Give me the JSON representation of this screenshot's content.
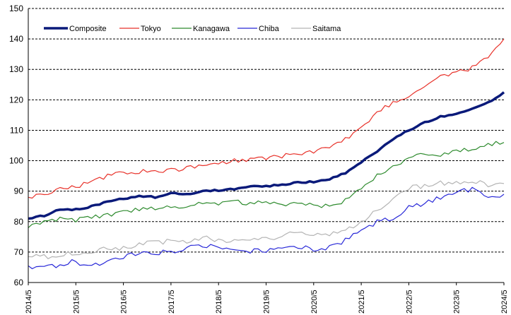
{
  "chart_data": {
    "type": "line",
    "title": "",
    "xlabel": "",
    "ylabel": "",
    "ylim": [
      60,
      150
    ],
    "yticks": [
      60,
      70,
      80,
      90,
      100,
      110,
      120,
      130,
      140,
      150
    ],
    "x_start": "2014/5",
    "x_end": "2024/5",
    "x_ticks": [
      "2014/5",
      "2015/5",
      "2016/5",
      "2017/5",
      "2018/5",
      "2019/5",
      "2020/5",
      "2021/5",
      "2022/5",
      "2023/5",
      "2024/5"
    ],
    "grid": "horizontal dashed",
    "legend_position": "top-left",
    "series": [
      {
        "name": "Composite",
        "color": "#0a1a7a",
        "keypoints": [
          [
            "2014/5",
            81
          ],
          [
            "2014/9",
            82
          ],
          [
            "2015/1",
            84
          ],
          [
            "2015/5",
            84
          ],
          [
            "2015/9",
            85
          ],
          [
            "2016/1",
            86.5
          ],
          [
            "2016/5",
            87.5
          ],
          [
            "2016/9",
            88.5
          ],
          [
            "2017/1",
            88
          ],
          [
            "2017/5",
            89.5
          ],
          [
            "2017/9",
            89
          ],
          [
            "2018/1",
            90
          ],
          [
            "2018/5",
            90.3
          ],
          [
            "2018/9",
            90.8
          ],
          [
            "2019/1",
            91.5
          ],
          [
            "2019/5",
            91.7
          ],
          [
            "2019/9",
            92
          ],
          [
            "2020/1",
            93
          ],
          [
            "2020/5",
            93
          ],
          [
            "2020/9",
            94
          ],
          [
            "2021/1",
            96
          ],
          [
            "2021/5",
            99.5
          ],
          [
            "2021/9",
            103
          ],
          [
            "2022/1",
            107
          ],
          [
            "2022/5",
            110
          ],
          [
            "2022/9",
            112.5
          ],
          [
            "2023/1",
            114.5
          ],
          [
            "2023/5",
            115.5
          ],
          [
            "2023/9",
            117
          ],
          [
            "2024/1",
            119
          ],
          [
            "2024/5",
            122.5
          ]
        ]
      },
      {
        "name": "Tokyo",
        "color": "#e8322a",
        "keypoints": [
          [
            "2014/5",
            88
          ],
          [
            "2014/9",
            89
          ],
          [
            "2015/1",
            91
          ],
          [
            "2015/5",
            91.5
          ],
          [
            "2015/9",
            93
          ],
          [
            "2016/1",
            95
          ],
          [
            "2016/5",
            96
          ],
          [
            "2016/9",
            96.5
          ],
          [
            "2017/1",
            96.5
          ],
          [
            "2017/5",
            97
          ],
          [
            "2017/9",
            97.5
          ],
          [
            "2018/1",
            98.5
          ],
          [
            "2018/5",
            99
          ],
          [
            "2018/9",
            100
          ],
          [
            "2019/1",
            100.5
          ],
          [
            "2019/5",
            101
          ],
          [
            "2019/9",
            101.5
          ],
          [
            "2020/1",
            102.5
          ],
          [
            "2020/5",
            103
          ],
          [
            "2020/9",
            104.5
          ],
          [
            "2021/1",
            107
          ],
          [
            "2021/5",
            111
          ],
          [
            "2021/9",
            116
          ],
          [
            "2022/1",
            119
          ],
          [
            "2022/5",
            121.5
          ],
          [
            "2022/9",
            125
          ],
          [
            "2023/1",
            127.5
          ],
          [
            "2023/5",
            129
          ],
          [
            "2023/9",
            130.5
          ],
          [
            "2024/1",
            134
          ],
          [
            "2024/5",
            140
          ]
        ]
      },
      {
        "name": "Kanagawa",
        "color": "#2e8b2e",
        "keypoints": [
          [
            "2014/5",
            78
          ],
          [
            "2014/9",
            80
          ],
          [
            "2015/1",
            81
          ],
          [
            "2015/5",
            80.5
          ],
          [
            "2015/9",
            81.5
          ],
          [
            "2016/1",
            82
          ],
          [
            "2016/5",
            83
          ],
          [
            "2016/9",
            84
          ],
          [
            "2017/1",
            84.5
          ],
          [
            "2017/5",
            85
          ],
          [
            "2017/9",
            85
          ],
          [
            "2018/1",
            86.5
          ],
          [
            "2018/5",
            86
          ],
          [
            "2018/9",
            86.5
          ],
          [
            "2019/1",
            86
          ],
          [
            "2019/5",
            86.5
          ],
          [
            "2019/9",
            85.5
          ],
          [
            "2020/1",
            86
          ],
          [
            "2020/5",
            85.5
          ],
          [
            "2020/9",
            85
          ],
          [
            "2021/1",
            87
          ],
          [
            "2021/5",
            90.5
          ],
          [
            "2021/9",
            95
          ],
          [
            "2022/1",
            98
          ],
          [
            "2022/5",
            100.5
          ],
          [
            "2022/9",
            102.5
          ],
          [
            "2023/1",
            102
          ],
          [
            "2023/5",
            103
          ],
          [
            "2023/9",
            104
          ],
          [
            "2024/1",
            105.5
          ],
          [
            "2024/5",
            106
          ]
        ]
      },
      {
        "name": "Chiba",
        "color": "#2828d8",
        "keypoints": [
          [
            "2014/5",
            65.5
          ],
          [
            "2014/9",
            65
          ],
          [
            "2015/1",
            66
          ],
          [
            "2015/5",
            67
          ],
          [
            "2015/9",
            65
          ],
          [
            "2016/1",
            67.5
          ],
          [
            "2016/5",
            68.5
          ],
          [
            "2016/9",
            69.5
          ],
          [
            "2017/1",
            70
          ],
          [
            "2017/5",
            70
          ],
          [
            "2017/9",
            71
          ],
          [
            "2018/1",
            72.5
          ],
          [
            "2018/5",
            71.5
          ],
          [
            "2018/9",
            70.5
          ],
          [
            "2019/1",
            70.5
          ],
          [
            "2019/5",
            70.5
          ],
          [
            "2019/9",
            71
          ],
          [
            "2020/1",
            72
          ],
          [
            "2020/5",
            71
          ],
          [
            "2020/9",
            71.5
          ],
          [
            "2021/1",
            74
          ],
          [
            "2021/5",
            77
          ],
          [
            "2021/9",
            80
          ],
          [
            "2022/1",
            81.5
          ],
          [
            "2022/5",
            84.5
          ],
          [
            "2022/9",
            86
          ],
          [
            "2023/1",
            88
          ],
          [
            "2023/5",
            90
          ],
          [
            "2023/9",
            90.5
          ],
          [
            "2024/1",
            88
          ],
          [
            "2024/5",
            89
          ]
        ]
      },
      {
        "name": "Saitama",
        "color": "#b4b4b4",
        "keypoints": [
          [
            "2014/5",
            68.5
          ],
          [
            "2014/9",
            68.5
          ],
          [
            "2015/1",
            69
          ],
          [
            "2015/5",
            70
          ],
          [
            "2015/9",
            70
          ],
          [
            "2016/1",
            71
          ],
          [
            "2016/5",
            71.5
          ],
          [
            "2016/9",
            72.5
          ],
          [
            "2017/1",
            73
          ],
          [
            "2017/5",
            73.5
          ],
          [
            "2017/9",
            73.5
          ],
          [
            "2018/1",
            74.5
          ],
          [
            "2018/5",
            74
          ],
          [
            "2018/9",
            74
          ],
          [
            "2019/1",
            74.5
          ],
          [
            "2019/5",
            74.5
          ],
          [
            "2019/9",
            75
          ],
          [
            "2020/1",
            76.5
          ],
          [
            "2020/5",
            76
          ],
          [
            "2020/9",
            76
          ],
          [
            "2021/1",
            77.5
          ],
          [
            "2021/5",
            80
          ],
          [
            "2021/9",
            84
          ],
          [
            "2022/1",
            88
          ],
          [
            "2022/5",
            91
          ],
          [
            "2022/9",
            92
          ],
          [
            "2023/1",
            92.5
          ],
          [
            "2023/5",
            93
          ],
          [
            "2023/9",
            93.5
          ],
          [
            "2024/1",
            92
          ],
          [
            "2024/5",
            92.5
          ]
        ]
      }
    ]
  }
}
